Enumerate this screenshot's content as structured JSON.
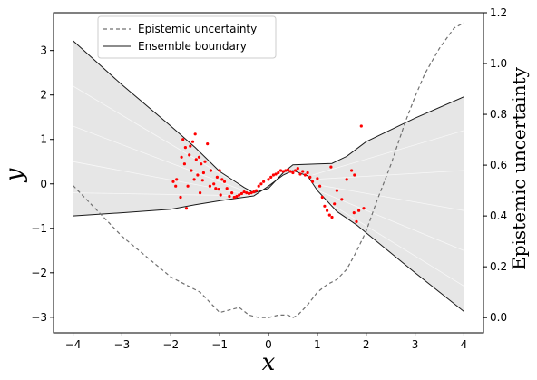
{
  "chart_data": {
    "type": "line",
    "xlabel": "x",
    "ylabel": "y",
    "y2label": "Epistemic uncertainty",
    "xlim": [
      -4.4,
      4.4
    ],
    "ylim": [
      -3.35,
      3.85
    ],
    "y2lim": [
      -0.06,
      1.2
    ],
    "xticks": [
      -4,
      -3,
      -2,
      -1,
      0,
      1,
      2,
      3,
      4
    ],
    "yticks": [
      -3,
      -2,
      -1,
      0,
      1,
      2,
      3
    ],
    "y2ticks": [
      0.0,
      0.2,
      0.4,
      0.6,
      0.8,
      1.0,
      1.2
    ],
    "x_tick_labels": [
      "−4",
      "−3",
      "−2",
      "−1",
      "0",
      "1",
      "2",
      "3",
      "4"
    ],
    "y_tick_labels": [
      "−3",
      "−2",
      "−1",
      "0",
      "1",
      "2",
      "3"
    ],
    "y2_tick_labels": [
      "0.0",
      "0.2",
      "0.4",
      "0.6",
      "0.8",
      "1.0",
      "1.2"
    ],
    "legend_placement": "top-left",
    "legend": [
      {
        "label": "Epistemic uncertainty",
        "style": "dashed",
        "color": "#707070"
      },
      {
        "label": "Ensemble boundary",
        "style": "solid",
        "color": "#000000"
      }
    ],
    "colors": {
      "band_fill": "#e6e6e6",
      "boundary": "#1a1a1a",
      "uncertainty": "#707070",
      "points": "#ff0000"
    },
    "ensemble_upper": {
      "x": [
        -4.0,
        -3.0,
        -2.0,
        -1.5,
        -1.0,
        -0.5,
        -0.3,
        0.0,
        0.3,
        0.5,
        1.0,
        1.3,
        1.6,
        2.0,
        3.0,
        4.0
      ],
      "y": [
        3.22,
        2.23,
        1.3,
        0.82,
        0.28,
        -0.08,
        -0.2,
        -0.1,
        0.25,
        0.43,
        0.45,
        0.46,
        0.62,
        0.95,
        1.48,
        1.96
      ]
    },
    "ensemble_lower": {
      "x": [
        -4.0,
        -3.0,
        -2.0,
        -1.5,
        -1.0,
        -0.5,
        -0.3,
        0.0,
        0.3,
        0.5,
        0.8,
        1.0,
        1.4,
        1.8,
        2.0,
        3.0,
        4.0
      ],
      "y": [
        -0.72,
        -0.65,
        -0.57,
        -0.47,
        -0.38,
        -0.3,
        -0.27,
        -0.05,
        0.2,
        0.3,
        0.18,
        -0.15,
        -0.62,
        -0.92,
        -1.1,
        -2.0,
        -2.87
      ]
    },
    "epistemic_uncertainty": {
      "x": [
        -4.0,
        -3.5,
        -3.0,
        -2.5,
        -2.0,
        -1.6,
        -1.4,
        -1.2,
        -1.0,
        -0.8,
        -0.6,
        -0.4,
        -0.2,
        0.0,
        0.2,
        0.4,
        0.5,
        0.6,
        0.8,
        1.0,
        1.2,
        1.4,
        1.6,
        1.8,
        2.0,
        2.2,
        2.5,
        2.8,
        3.0,
        3.2,
        3.5,
        3.8,
        4.0
      ],
      "y": [
        0.52,
        0.42,
        0.32,
        0.24,
        0.16,
        0.12,
        0.1,
        0.06,
        0.02,
        0.03,
        0.04,
        0.01,
        0.0,
        0.0,
        0.01,
        0.01,
        0.0,
        0.01,
        0.05,
        0.1,
        0.13,
        0.15,
        0.19,
        0.26,
        0.34,
        0.45,
        0.6,
        0.77,
        0.87,
        0.96,
        1.06,
        1.14,
        1.16
      ]
    },
    "points": {
      "x": [
        -1.95,
        -1.9,
        -1.88,
        -1.8,
        -1.75,
        -1.72,
        -1.7,
        -1.65,
        -1.62,
        -1.6,
        -1.58,
        -1.55,
        -1.52,
        -1.5,
        -1.48,
        -1.45,
        -1.42,
        -1.4,
        -1.38,
        -1.35,
        -1.3,
        -1.25,
        -1.2,
        -1.18,
        -1.12,
        -1.08,
        -1.05,
        -1.0,
        -0.98,
        -0.95,
        -0.9,
        -0.85,
        -0.8,
        -0.75,
        -0.7,
        -0.65,
        -0.6,
        -0.55,
        -0.5,
        -0.45,
        -0.4,
        -0.35,
        -0.3,
        -0.25,
        -0.2,
        -0.15,
        -0.1,
        0.0,
        0.05,
        0.1,
        0.15,
        0.2,
        0.25,
        0.3,
        0.35,
        0.4,
        0.45,
        0.5,
        0.55,
        0.6,
        0.65,
        0.7,
        0.75,
        0.8,
        0.85,
        0.9,
        1.0,
        1.05,
        1.1,
        1.15,
        1.2,
        1.25,
        1.3,
        1.35,
        1.4,
        1.5,
        1.6,
        1.7,
        1.75,
        1.8,
        1.85,
        1.9,
        1.95,
        -1.78,
        -1.68,
        -1.33,
        -1.02,
        1.28,
        1.76
      ],
      "y": [
        0.05,
        -0.05,
        0.1,
        -0.3,
        1.0,
        0.45,
        0.82,
        -0.05,
        0.65,
        0.85,
        0.3,
        0.95,
        0.1,
        1.12,
        0.55,
        0.2,
        0.6,
        -0.2,
        0.45,
        0.08,
        0.5,
        0.9,
        -0.05,
        0.3,
        0.0,
        -0.1,
        0.15,
        0.3,
        -0.25,
        0.1,
        0.05,
        -0.1,
        -0.28,
        -0.2,
        -0.3,
        -0.28,
        -0.25,
        -0.22,
        -0.18,
        -0.2,
        -0.22,
        -0.2,
        -0.18,
        -0.15,
        -0.05,
        0.0,
        0.05,
        0.1,
        0.15,
        0.2,
        0.22,
        0.25,
        0.3,
        0.28,
        0.3,
        0.32,
        0.28,
        0.25,
        0.3,
        0.35,
        0.22,
        0.28,
        0.2,
        0.25,
        0.15,
        0.05,
        0.12,
        -0.05,
        -0.3,
        -0.5,
        -0.6,
        -0.7,
        -0.75,
        -0.45,
        -0.15,
        -0.35,
        0.1,
        0.3,
        -0.65,
        -0.85,
        -0.6,
        1.3,
        -0.55,
        0.6,
        -0.55,
        0.25,
        -0.12,
        0.38,
        0.2
      ]
    },
    "member_lines": [
      {
        "x": [
          -4.0,
          -0.3
        ],
        "y": [
          2.2,
          -0.22
        ]
      },
      {
        "x": [
          -4.0,
          -0.3
        ],
        "y": [
          1.3,
          -0.24
        ]
      },
      {
        "x": [
          -4.0,
          -0.3
        ],
        "y": [
          0.5,
          -0.26
        ]
      },
      {
        "x": [
          -4.0,
          -0.3
        ],
        "y": [
          -0.2,
          -0.27
        ]
      },
      {
        "x": [
          0.9,
          4.0
        ],
        "y": [
          0.2,
          1.2
        ]
      },
      {
        "x": [
          0.9,
          4.0
        ],
        "y": [
          0.1,
          0.3
        ]
      },
      {
        "x": [
          0.9,
          4.0
        ],
        "y": [
          0.0,
          -0.6
        ]
      },
      {
        "x": [
          0.9,
          4.0
        ],
        "y": [
          -0.1,
          -1.5
        ]
      },
      {
        "x": [
          0.9,
          4.0
        ],
        "y": [
          -0.2,
          -2.3
        ]
      }
    ]
  }
}
